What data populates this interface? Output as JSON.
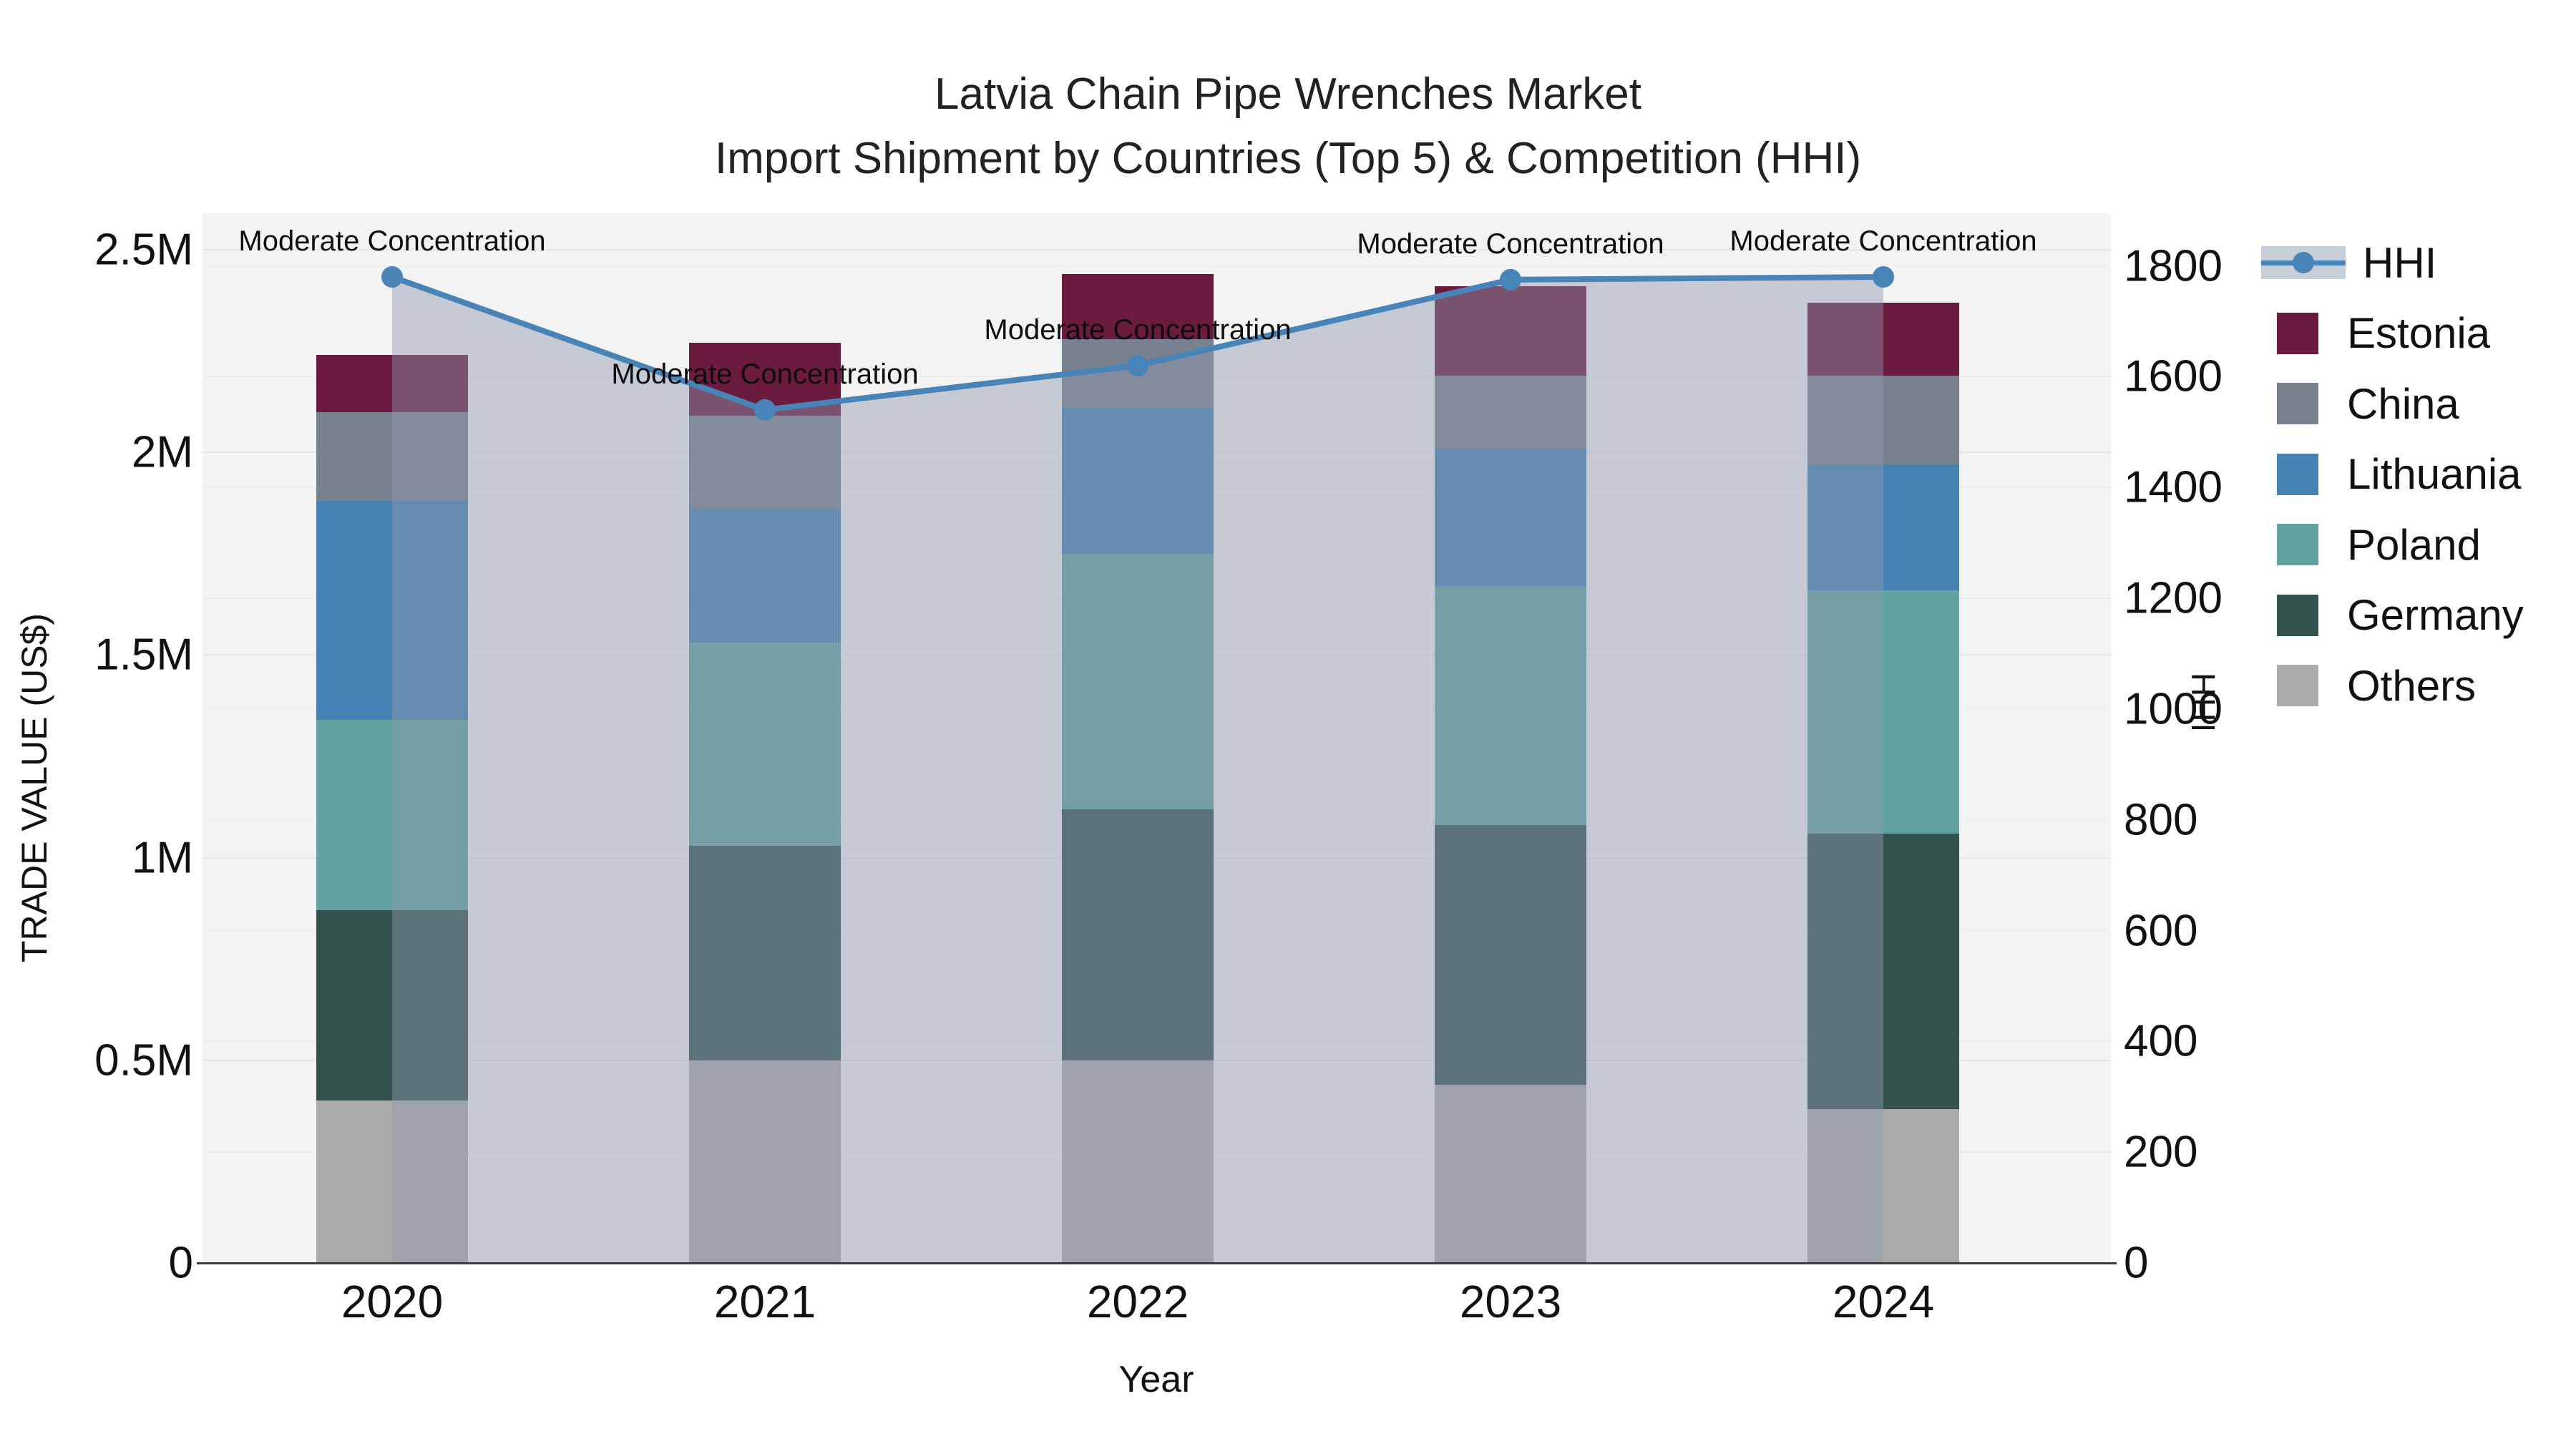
{
  "title": {
    "line1": "Latvia Chain Pipe Wrenches Market",
    "line2": "Import Shipment by Countries (Top 5) & Competition (HHI)"
  },
  "axes": {
    "x": {
      "label": "Year",
      "ticks": [
        "2020",
        "2021",
        "2022",
        "2023",
        "2024"
      ]
    },
    "y_left": {
      "label": "TRADE VALUE (US$)",
      "ticks": [
        "0",
        "0.5M",
        "1M",
        "1.5M",
        "2M",
        "2.5M"
      ],
      "tick_values_musd": [
        0,
        0.5,
        1.0,
        1.5,
        2.0,
        2.5
      ]
    },
    "y_right": {
      "label": "HHI",
      "ticks": [
        "0",
        "200",
        "400",
        "600",
        "800",
        "1000",
        "1200",
        "1400",
        "1600",
        "1800"
      ],
      "tick_values": [
        0,
        200,
        400,
        600,
        800,
        1000,
        1200,
        1400,
        1600,
        1800
      ]
    }
  },
  "legend": {
    "items": [
      {
        "label": "HHI",
        "type": "line",
        "color": "#4884b8"
      },
      {
        "label": "Estonia",
        "type": "swatch",
        "color": "#6b1b3e"
      },
      {
        "label": "China",
        "type": "swatch",
        "color": "#78828e"
      },
      {
        "label": "Lithuania",
        "type": "swatch",
        "color": "#4682b4"
      },
      {
        "label": "Poland",
        "type": "swatch",
        "color": "#62a2a1"
      },
      {
        "label": "Germany",
        "type": "swatch",
        "color": "#33524d"
      },
      {
        "label": "Others",
        "type": "swatch",
        "color": "#ababa9"
      }
    ]
  },
  "colors": {
    "hhi_line": "#4884b8",
    "hhi_area_fill": "rgba(141,153,175,0.45)",
    "plot_background": "#f3f3f3",
    "gridline": "#e7e7e7",
    "axis_line": "#3c3c3c"
  },
  "annotations": {
    "per_year_label": [
      "Moderate Concentration",
      "Moderate Concentration",
      "Moderate Concentration",
      "Moderate Concentration",
      "Moderate Concentration"
    ]
  },
  "chart_data": [
    {
      "type": "bar",
      "stacked": true,
      "title": "Import Shipment by Countries (Top 5)",
      "xlabel": "Year",
      "ylabel": "TRADE VALUE (US$)",
      "ylim_musd": [
        0,
        2.5
      ],
      "unit": "million US$",
      "categories": [
        "2020",
        "2021",
        "2022",
        "2023",
        "2024"
      ],
      "series": [
        {
          "name": "Others",
          "color": "#ababa9",
          "values": [
            0.4,
            0.5,
            0.5,
            0.44,
            0.38
          ]
        },
        {
          "name": "Germany",
          "color": "#33524d",
          "values": [
            0.47,
            0.53,
            0.62,
            0.64,
            0.68
          ]
        },
        {
          "name": "Poland",
          "color": "#62a2a1",
          "values": [
            0.47,
            0.5,
            0.63,
            0.59,
            0.6
          ]
        },
        {
          "name": "Lithuania",
          "color": "#4682b4",
          "values": [
            0.54,
            0.33,
            0.36,
            0.34,
            0.31
          ]
        },
        {
          "name": "China",
          "color": "#78828e",
          "values": [
            0.22,
            0.23,
            0.17,
            0.18,
            0.22
          ]
        },
        {
          "name": "Estonia",
          "color": "#6b1b3e",
          "values": [
            0.14,
            0.18,
            0.16,
            0.22,
            0.18
          ]
        }
      ],
      "totals_musd": [
        2.24,
        2.27,
        2.44,
        2.41,
        2.37
      ],
      "legend_position": "right"
    },
    {
      "type": "line",
      "name": "HHI",
      "ylabel": "HHI",
      "ylim": [
        0,
        1800
      ],
      "x": [
        "2020",
        "2021",
        "2022",
        "2023",
        "2024"
      ],
      "values": [
        1780,
        1540,
        1620,
        1775,
        1780
      ],
      "point_annotations": [
        "Moderate Concentration",
        "Moderate Concentration",
        "Moderate Concentration",
        "Moderate Concentration",
        "Moderate Concentration"
      ],
      "marker": "circle",
      "area_fill": true,
      "color": "#4884b8"
    }
  ]
}
